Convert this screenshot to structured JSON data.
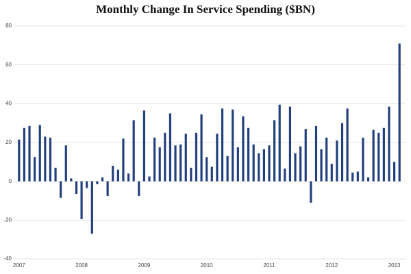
{
  "chart_data": {
    "type": "bar",
    "title": "Monthly Change In Service Spending ($BN)",
    "categories": [
      "2007",
      null,
      null,
      null,
      null,
      null,
      null,
      null,
      null,
      null,
      null,
      null,
      "2008",
      null,
      null,
      null,
      null,
      null,
      null,
      null,
      null,
      null,
      null,
      null,
      "2009",
      null,
      null,
      null,
      null,
      null,
      null,
      null,
      null,
      null,
      null,
      null,
      "2010",
      null,
      null,
      null,
      null,
      null,
      null,
      null,
      null,
      null,
      null,
      null,
      "2011",
      null,
      null,
      null,
      null,
      null,
      null,
      null,
      null,
      null,
      null,
      null,
      "2012",
      null,
      null,
      null,
      null,
      null,
      null,
      null,
      null,
      null,
      null,
      null,
      "2013",
      null
    ],
    "values": [
      21.5,
      27.5,
      28.5,
      12.5,
      29,
      23,
      22.5,
      7,
      -8.5,
      18.5,
      1.5,
      -6.5,
      -19.5,
      -3.5,
      -27,
      -1.5,
      2,
      -7.5,
      8,
      6,
      22,
      4,
      31.5,
      -7.5,
      36.5,
      2.5,
      22.5,
      17.5,
      25,
      35,
      18.5,
      19,
      24.5,
      7,
      25,
      34.5,
      12.5,
      7.5,
      24.5,
      37.5,
      13,
      37,
      17.5,
      33.5,
      27.5,
      19,
      14.5,
      16.5,
      18.5,
      31.5,
      39.5,
      6.5,
      38.5,
      14.5,
      18,
      27,
      -11,
      28.5,
      16.5,
      22.5,
      9,
      21,
      30,
      37.5,
      4.5,
      5,
      22.5,
      2,
      26.5,
      25,
      27.5,
      38.5,
      10,
      71
    ],
    "color": "#22407e",
    "ylim": [
      -40,
      80
    ],
    "yticks": [
      80,
      60,
      40,
      20,
      0,
      -20,
      -40
    ],
    "grid": true
  }
}
